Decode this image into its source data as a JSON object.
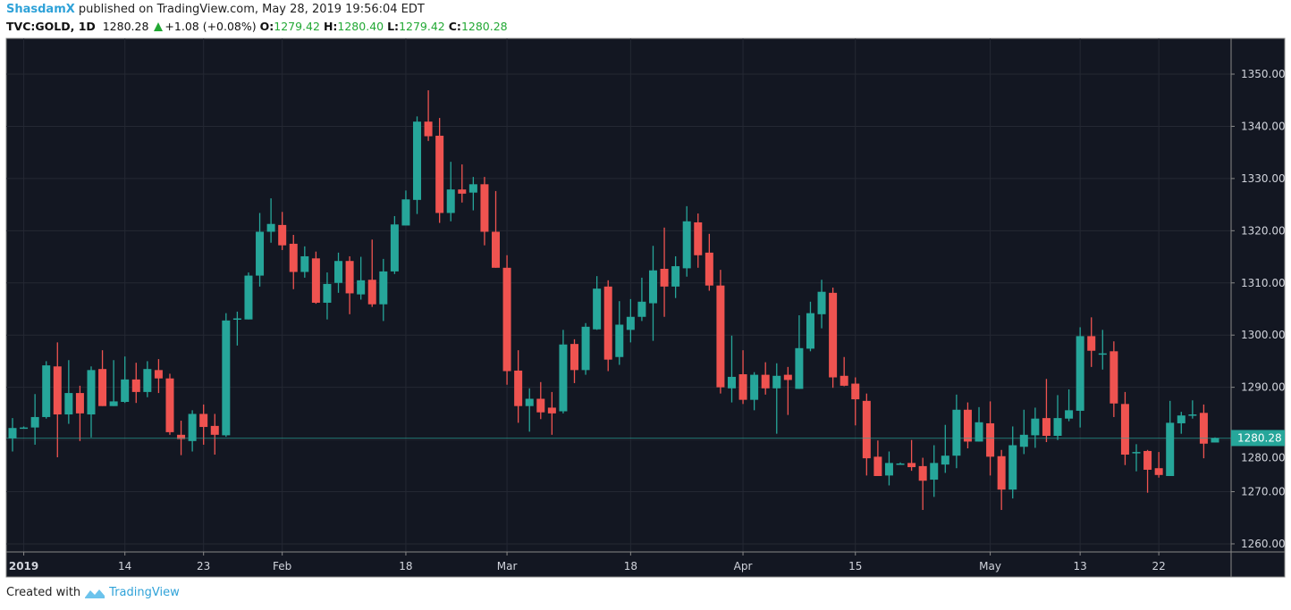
{
  "header": {
    "author": "ShasdamX",
    "published_text": "published on TradingView.com, May 28, 2019 19:56:04 EDT",
    "symbol": "TVC:GOLD, 1D",
    "last_price": "1280.28",
    "change": "+1.08 (+0.08%)",
    "open_label": "O:",
    "open": "1279.42",
    "high_label": "H:",
    "high": "1280.40",
    "low_label": "L:",
    "low": "1279.42",
    "close_label": "C:",
    "close": "1280.28"
  },
  "footer": {
    "created_with": "Created with",
    "brand": "TradingView"
  },
  "colors": {
    "background": "#131722",
    "up": "#26a69a",
    "down": "#ef5350",
    "grid": "#242833",
    "axis_text": "#d1d4dc",
    "header_up": "#22a834"
  },
  "chart_data": {
    "type": "candlestick",
    "symbol": "TVC:GOLD",
    "interval": "1D",
    "ylim": [
      1257,
      1355
    ],
    "y_ticks": [
      "1260.00",
      "1270.00",
      "1280.00",
      "1290.00",
      "1300.00",
      "1310.00",
      "1320.00",
      "1330.00",
      "1340.00",
      "1350.00"
    ],
    "y_tick_values": [
      1260,
      1270,
      1280,
      1290,
      1300,
      1310,
      1320,
      1330,
      1340,
      1350
    ],
    "last_price_label": "1280.28",
    "last_price": 1280.28,
    "grid": true,
    "x_ticks": [
      {
        "label": "2019",
        "bar": 1
      },
      {
        "label": "14",
        "bar": 10
      },
      {
        "label": "23",
        "bar": 17
      },
      {
        "label": "Feb",
        "bar": 24
      },
      {
        "label": "18",
        "bar": 35
      },
      {
        "label": "Mar",
        "bar": 44
      },
      {
        "label": "18",
        "bar": 55
      },
      {
        "label": "Apr",
        "bar": 65
      },
      {
        "label": "15",
        "bar": 75
      },
      {
        "label": "May",
        "bar": 87
      },
      {
        "label": "13",
        "bar": 95
      },
      {
        "label": "22",
        "bar": 102
      }
    ],
    "ohlc": [
      [
        1280.2,
        1284.1,
        1277.7,
        1282.2
      ],
      [
        1282.3,
        1282.5,
        1282.1,
        1282.3
      ],
      [
        1282.3,
        1288.7,
        1279.0,
        1284.3
      ],
      [
        1284.3,
        1295.0,
        1284.0,
        1294.2
      ],
      [
        1294.0,
        1298.6,
        1276.6,
        1284.8
      ],
      [
        1284.8,
        1295.2,
        1283.0,
        1288.9
      ],
      [
        1288.9,
        1290.3,
        1279.7,
        1285.0
      ],
      [
        1284.8,
        1294.0,
        1280.4,
        1293.3
      ],
      [
        1293.5,
        1297.1,
        1286.4,
        1286.4
      ],
      [
        1286.4,
        1295.2,
        1286.4,
        1287.3
      ],
      [
        1287.2,
        1295.9,
        1287.0,
        1291.5
      ],
      [
        1291.5,
        1294.7,
        1287.0,
        1289.1
      ],
      [
        1289.1,
        1295.0,
        1288.1,
        1293.5
      ],
      [
        1293.3,
        1295.4,
        1288.9,
        1291.7
      ],
      [
        1291.7,
        1292.6,
        1280.9,
        1281.4
      ],
      [
        1280.9,
        1283.6,
        1277.0,
        1280.1
      ],
      [
        1279.7,
        1285.6,
        1277.7,
        1284.9
      ],
      [
        1284.9,
        1286.7,
        1279.0,
        1282.4
      ],
      [
        1282.6,
        1284.9,
        1277.1,
        1280.9
      ],
      [
        1280.8,
        1304.2,
        1280.5,
        1302.8
      ],
      [
        1303.2,
        1304.5,
        1298.0,
        1303.2
      ],
      [
        1303.0,
        1312.0,
        1303.0,
        1311.4
      ],
      [
        1311.4,
        1323.4,
        1309.3,
        1319.8
      ],
      [
        1319.8,
        1326.2,
        1317.7,
        1321.3
      ],
      [
        1321.1,
        1323.6,
        1316.3,
        1317.2
      ],
      [
        1317.5,
        1319.2,
        1308.8,
        1312.1
      ],
      [
        1312.1,
        1317.0,
        1311.0,
        1315.1
      ],
      [
        1314.7,
        1316.0,
        1306.0,
        1306.2
      ],
      [
        1306.2,
        1312.0,
        1303.0,
        1309.8
      ],
      [
        1310.0,
        1315.8,
        1308.1,
        1314.2
      ],
      [
        1314.2,
        1315.1,
        1304.0,
        1308.0
      ],
      [
        1307.8,
        1315.0,
        1306.8,
        1310.5
      ],
      [
        1310.6,
        1318.3,
        1305.4,
        1305.9
      ],
      [
        1305.9,
        1314.6,
        1302.7,
        1312.2
      ],
      [
        1312.2,
        1322.8,
        1311.7,
        1321.2
      ],
      [
        1321.0,
        1327.7,
        1321.0,
        1326.0
      ],
      [
        1325.9,
        1341.9,
        1323.2,
        1340.9
      ],
      [
        1340.9,
        1346.9,
        1337.2,
        1338.1
      ],
      [
        1338.2,
        1341.6,
        1321.5,
        1323.4
      ],
      [
        1323.4,
        1333.2,
        1321.8,
        1327.9
      ],
      [
        1327.9,
        1332.7,
        1325.4,
        1327.1
      ],
      [
        1327.3,
        1330.3,
        1323.9,
        1328.9
      ],
      [
        1328.9,
        1330.3,
        1317.2,
        1319.8
      ],
      [
        1319.8,
        1327.6,
        1312.9,
        1312.9
      ],
      [
        1312.9,
        1315.3,
        1290.5,
        1293.1
      ],
      [
        1293.2,
        1297.1,
        1283.2,
        1286.4
      ],
      [
        1286.4,
        1289.8,
        1281.5,
        1287.8
      ],
      [
        1287.8,
        1291.0,
        1283.9,
        1285.2
      ],
      [
        1286.1,
        1289.1,
        1280.9,
        1285.0
      ],
      [
        1285.4,
        1301.0,
        1285.0,
        1298.2
      ],
      [
        1298.3,
        1299.2,
        1290.8,
        1293.3
      ],
      [
        1293.3,
        1302.3,
        1292.4,
        1301.6
      ],
      [
        1301.1,
        1311.3,
        1301.0,
        1308.9
      ],
      [
        1309.3,
        1310.5,
        1293.1,
        1295.3
      ],
      [
        1295.8,
        1306.5,
        1294.3,
        1302.0
      ],
      [
        1301.0,
        1306.9,
        1298.6,
        1303.5
      ],
      [
        1303.5,
        1311.0,
        1302.7,
        1306.4
      ],
      [
        1306.1,
        1317.1,
        1298.9,
        1312.4
      ],
      [
        1312.7,
        1320.6,
        1303.5,
        1309.3
      ],
      [
        1309.3,
        1315.1,
        1307.1,
        1313.2
      ],
      [
        1312.8,
        1324.7,
        1311.2,
        1321.8
      ],
      [
        1321.6,
        1323.3,
        1312.9,
        1315.3
      ],
      [
        1315.8,
        1319.4,
        1308.5,
        1309.5
      ],
      [
        1309.5,
        1312.5,
        1288.8,
        1290.0
      ],
      [
        1289.8,
        1299.9,
        1287.1,
        1292.0
      ],
      [
        1292.5,
        1297.1,
        1286.8,
        1287.6
      ],
      [
        1287.6,
        1292.9,
        1285.6,
        1292.4
      ],
      [
        1292.4,
        1294.8,
        1288.6,
        1289.8
      ],
      [
        1289.8,
        1294.6,
        1281.1,
        1292.2
      ],
      [
        1292.4,
        1293.9,
        1284.7,
        1291.4
      ],
      [
        1289.7,
        1303.8,
        1289.7,
        1297.5
      ],
      [
        1297.4,
        1306.4,
        1296.9,
        1304.2
      ],
      [
        1304.0,
        1310.6,
        1301.3,
        1308.3
      ],
      [
        1308.1,
        1309.1,
        1289.9,
        1291.9
      ],
      [
        1292.2,
        1295.8,
        1290.2,
        1290.3
      ],
      [
        1290.7,
        1291.9,
        1282.7,
        1287.7
      ],
      [
        1287.4,
        1288.8,
        1273.1,
        1276.4
      ],
      [
        1276.7,
        1279.8,
        1273.0,
        1273.0
      ],
      [
        1273.1,
        1277.7,
        1271.2,
        1275.5
      ],
      [
        1275.4,
        1275.6,
        1275.2,
        1275.4
      ],
      [
        1275.5,
        1279.9,
        1274.0,
        1274.7
      ],
      [
        1274.9,
        1276.5,
        1266.5,
        1272.1
      ],
      [
        1272.3,
        1278.9,
        1269.0,
        1275.5
      ],
      [
        1275.2,
        1282.8,
        1273.6,
        1276.9
      ],
      [
        1276.9,
        1288.6,
        1274.5,
        1285.7
      ],
      [
        1285.7,
        1287.1,
        1278.3,
        1279.6
      ],
      [
        1279.6,
        1286.2,
        1279.6,
        1283.3
      ],
      [
        1283.1,
        1287.3,
        1273.1,
        1276.7
      ],
      [
        1276.8,
        1278.0,
        1266.5,
        1270.4
      ],
      [
        1270.4,
        1282.5,
        1268.7,
        1278.9
      ],
      [
        1278.6,
        1285.7,
        1277.2,
        1280.9
      ],
      [
        1280.8,
        1286.1,
        1278.4,
        1284.0
      ],
      [
        1284.1,
        1291.6,
        1279.5,
        1280.7
      ],
      [
        1280.7,
        1288.5,
        1279.9,
        1284.1
      ],
      [
        1284.0,
        1289.6,
        1283.5,
        1285.6
      ],
      [
        1285.5,
        1301.5,
        1282.3,
        1299.8
      ],
      [
        1299.8,
        1303.4,
        1293.9,
        1297.0
      ],
      [
        1296.5,
        1301.0,
        1293.4,
        1296.5
      ],
      [
        1296.9,
        1298.8,
        1284.3,
        1286.9
      ],
      [
        1286.8,
        1289.1,
        1275.1,
        1277.1
      ],
      [
        1277.6,
        1279.1,
        1273.9,
        1277.6
      ],
      [
        1277.8,
        1278.0,
        1269.8,
        1274.2
      ],
      [
        1274.5,
        1277.6,
        1272.7,
        1273.2
      ],
      [
        1273.0,
        1287.4,
        1273.0,
        1283.2
      ],
      [
        1283.1,
        1285.3,
        1281.1,
        1284.6
      ],
      [
        1284.8,
        1287.5,
        1284.0,
        1284.8
      ],
      [
        1285.1,
        1286.7,
        1276.4,
        1279.2
      ],
      [
        1279.42,
        1280.4,
        1279.42,
        1280.28
      ]
    ]
  }
}
